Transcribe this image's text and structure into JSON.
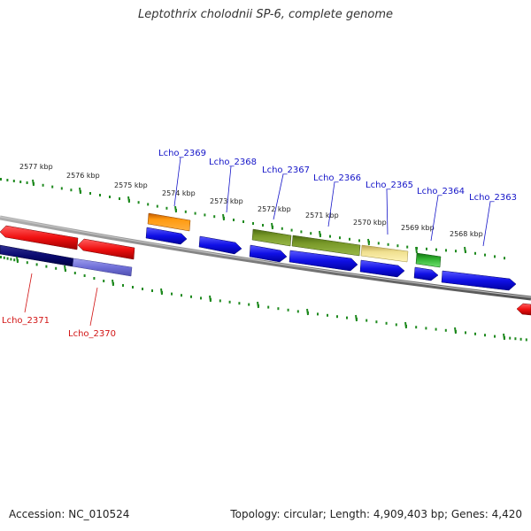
{
  "title": "Leptothrix cholodnii SP-6, complete genome",
  "footer": {
    "accession": "Accession: NC_010524",
    "summary": "Topology: circular; Length: 4,909,403 bp; Genes: 4,420"
  },
  "colors": {
    "forward_label": "#1414c8",
    "reverse_label": "#d21414",
    "backbone": "#8c8c8c",
    "ticks": "#1f8a1f"
  },
  "kbp_labels": [
    "2577 kbp",
    "2576 kbp",
    "2575 kbp",
    "2574 kbp",
    "2573 kbp",
    "2572 kbp",
    "2571 kbp",
    "2570 kbp",
    "2569 kbp",
    "2568 kbp"
  ],
  "gene_labels": [
    "Lcho_2369",
    "Lcho_2368",
    "Lcho_2367",
    "Lcho_2366",
    "Lcho_2365",
    "Lcho_2364",
    "Lcho_2363",
    "Lcho_2371",
    "Lcho_2370"
  ]
}
